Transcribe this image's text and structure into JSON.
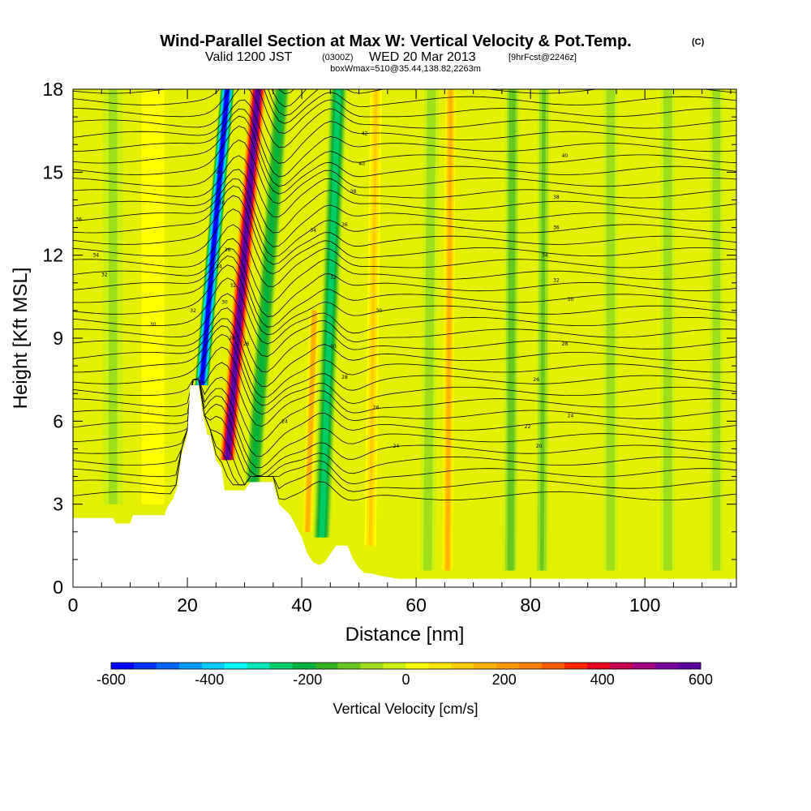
{
  "title": {
    "main": "Wind-Parallel Section at Max W: Vertical Velocity & Pot.Temp.",
    "copyright": "(C)",
    "valid_prefix": "Valid 1200 JST",
    "valid_utc": "(0300Z)",
    "valid_date": "WED 20 Mar 2013",
    "forecast": "[9hrFcst@2246z]",
    "box_info": "boxWmax=510@35.44,138.82,2263m"
  },
  "chart_data": {
    "type": "heatmap",
    "xlabel": "Distance [nm]",
    "ylabel": "Height [Kft MSL]",
    "xlim": [
      0,
      116
    ],
    "ylim": [
      0,
      18
    ],
    "x_ticks": [
      0,
      20,
      40,
      60,
      80,
      100
    ],
    "y_ticks": [
      0,
      3,
      6,
      9,
      12,
      15,
      18
    ],
    "colorbar": {
      "title": "Vertical Velocity [cm/s]",
      "min": -600,
      "max": 600,
      "tick_values": [
        -600,
        -400,
        -200,
        0,
        200,
        400,
        600
      ],
      "colors": [
        "#0000ff",
        "#0033ff",
        "#0066ff",
        "#0099ff",
        "#00ccff",
        "#00ffff",
        "#00e6b8",
        "#00cc66",
        "#00b33c",
        "#33b020",
        "#66c81e",
        "#9ede1a",
        "#ccf010",
        "#ffff00",
        "#ffe600",
        "#ffcc00",
        "#ffb300",
        "#ff9900",
        "#ff8000",
        "#ff5a00",
        "#ff2800",
        "#e6001e",
        "#c80050",
        "#a00080",
        "#7a009e",
        "#5a00a0"
      ]
    },
    "velocity_features": [
      {
        "x": 22.5,
        "height_top": 18,
        "height_bottom": 7.3,
        "tilt": 0.42,
        "value": -580,
        "width": 2.4
      },
      {
        "x": 27.0,
        "height_top": 18,
        "height_bottom": 4.6,
        "tilt": 0.4,
        "value": 560,
        "width": 2.8
      },
      {
        "x": 31.5,
        "height_top": 18,
        "height_bottom": 3.8,
        "tilt": 0.35,
        "value": -220,
        "width": 3.0
      },
      {
        "x": 43.5,
        "height_top": 18,
        "height_bottom": 1.8,
        "tilt": 0.18,
        "value": -250,
        "width": 3.2
      },
      {
        "x": 41.0,
        "height_top": 10,
        "height_bottom": 2.0,
        "tilt": 0.15,
        "value": 180,
        "width": 1.6
      },
      {
        "x": 52.0,
        "height_top": 18,
        "height_bottom": 1.5,
        "tilt": 0.06,
        "value": 110,
        "width": 2.0
      },
      {
        "x": 62.0,
        "height_top": 18,
        "height_bottom": 0.6,
        "tilt": 0.04,
        "value": -90,
        "width": 2.6
      },
      {
        "x": 65.5,
        "height_top": 18,
        "height_bottom": 0.6,
        "tilt": 0.03,
        "value": 140,
        "width": 1.8
      },
      {
        "x": 76.5,
        "height_top": 18,
        "height_bottom": 0.6,
        "tilt": 0.02,
        "value": -130,
        "width": 2.6
      },
      {
        "x": 82.0,
        "height_top": 18,
        "height_bottom": 0.6,
        "tilt": 0.02,
        "value": -110,
        "width": 2.2
      },
      {
        "x": 94.0,
        "height_top": 18,
        "height_bottom": 0.6,
        "tilt": 0.0,
        "value": -90,
        "width": 2.6
      },
      {
        "x": 104.0,
        "height_top": 18,
        "height_bottom": 0.6,
        "tilt": 0.0,
        "value": -80,
        "width": 2.6
      },
      {
        "x": 112.5,
        "height_top": 18,
        "height_bottom": 0.6,
        "tilt": 0.0,
        "value": -90,
        "width": 2.4
      },
      {
        "x": 7.0,
        "height_top": 18,
        "height_bottom": 3.0,
        "tilt": 0.0,
        "value": -60,
        "width": 3.5
      },
      {
        "x": 14.0,
        "height_top": 18,
        "height_bottom": 3.0,
        "tilt": 0.0,
        "value": 40,
        "width": 4.0
      }
    ],
    "terrain": [
      [
        0,
        2.5
      ],
      [
        7,
        2.5
      ],
      [
        7.5,
        2.3
      ],
      [
        10,
        2.3
      ],
      [
        10.5,
        2.6
      ],
      [
        16,
        2.6
      ],
      [
        16.5,
        2.9
      ],
      [
        17.5,
        3.2
      ],
      [
        18.2,
        3.6
      ],
      [
        19,
        4.8
      ],
      [
        20,
        5.5
      ],
      [
        20.5,
        7.3
      ],
      [
        22,
        7.3
      ],
      [
        22.5,
        6.5
      ],
      [
        23.5,
        5.5
      ],
      [
        24,
        5.5
      ],
      [
        25,
        4.6
      ],
      [
        26,
        4.3
      ],
      [
        26.5,
        3.5
      ],
      [
        30,
        3.5
      ],
      [
        31,
        3.8
      ],
      [
        35,
        3.8
      ],
      [
        36,
        3.0
      ],
      [
        38,
        2.6
      ],
      [
        39,
        2.2
      ],
      [
        40,
        1.8
      ],
      [
        41,
        1.2
      ],
      [
        42,
        0.9
      ],
      [
        43,
        0.8
      ],
      [
        44,
        0.9
      ],
      [
        45,
        1.2
      ],
      [
        46,
        1.5
      ],
      [
        48,
        1.5
      ],
      [
        49,
        1.0
      ],
      [
        50,
        0.7
      ],
      [
        51,
        0.5
      ],
      [
        52,
        0.5
      ],
      [
        54,
        0.4
      ],
      [
        57,
        0.3
      ],
      [
        60,
        0.3
      ],
      [
        62,
        0.3
      ]
    ],
    "theta_contour_labels": [
      {
        "x": 1.0,
        "y": 13.3,
        "text": "36"
      },
      {
        "x": 4.0,
        "y": 12.0,
        "text": "34"
      },
      {
        "x": 5.5,
        "y": 11.3,
        "text": "32"
      },
      {
        "x": 14.0,
        "y": 9.5,
        "text": "30"
      },
      {
        "x": 21.0,
        "y": 10.0,
        "text": "32"
      },
      {
        "x": 25.5,
        "y": 15.0,
        "text": "40"
      },
      {
        "x": 26.0,
        "y": 13.9,
        "text": "38"
      },
      {
        "x": 27.0,
        "y": 12.2,
        "text": "36"
      },
      {
        "x": 25.5,
        "y": 11.6,
        "text": "34"
      },
      {
        "x": 28.0,
        "y": 10.9,
        "text": "32"
      },
      {
        "x": 26.5,
        "y": 10.3,
        "text": "30"
      },
      {
        "x": 27.8,
        "y": 9.0,
        "text": "28"
      },
      {
        "x": 30.3,
        "y": 8.8,
        "text": "26"
      },
      {
        "x": 37.0,
        "y": 6.0,
        "text": "24"
      },
      {
        "x": 42.0,
        "y": 12.9,
        "text": "34"
      },
      {
        "x": 45.5,
        "y": 11.2,
        "text": "32"
      },
      {
        "x": 45.5,
        "y": 8.7,
        "text": "30"
      },
      {
        "x": 47.5,
        "y": 7.6,
        "text": "28"
      },
      {
        "x": 53.0,
        "y": 6.5,
        "text": "26"
      },
      {
        "x": 56.5,
        "y": 5.1,
        "text": "24"
      },
      {
        "x": 51.0,
        "y": 16.4,
        "text": "42"
      },
      {
        "x": 50.5,
        "y": 15.3,
        "text": "40"
      },
      {
        "x": 49.0,
        "y": 14.3,
        "text": "38"
      },
      {
        "x": 47.5,
        "y": 13.1,
        "text": "36"
      },
      {
        "x": 53.5,
        "y": 10.0,
        "text": "30"
      },
      {
        "x": 84.5,
        "y": 14.1,
        "text": "38"
      },
      {
        "x": 84.5,
        "y": 13.0,
        "text": "36"
      },
      {
        "x": 82.5,
        "y": 12.0,
        "text": "34"
      },
      {
        "x": 84.5,
        "y": 11.1,
        "text": "32"
      },
      {
        "x": 87.0,
        "y": 10.4,
        "text": "30"
      },
      {
        "x": 86.0,
        "y": 8.8,
        "text": "28"
      },
      {
        "x": 81.0,
        "y": 7.5,
        "text": "26"
      },
      {
        "x": 87.0,
        "y": 6.2,
        "text": "24"
      },
      {
        "x": 79.5,
        "y": 5.8,
        "text": "22"
      },
      {
        "x": 81.5,
        "y": 5.1,
        "text": "20"
      },
      {
        "x": 86.0,
        "y": 15.6,
        "text": "40"
      }
    ]
  }
}
